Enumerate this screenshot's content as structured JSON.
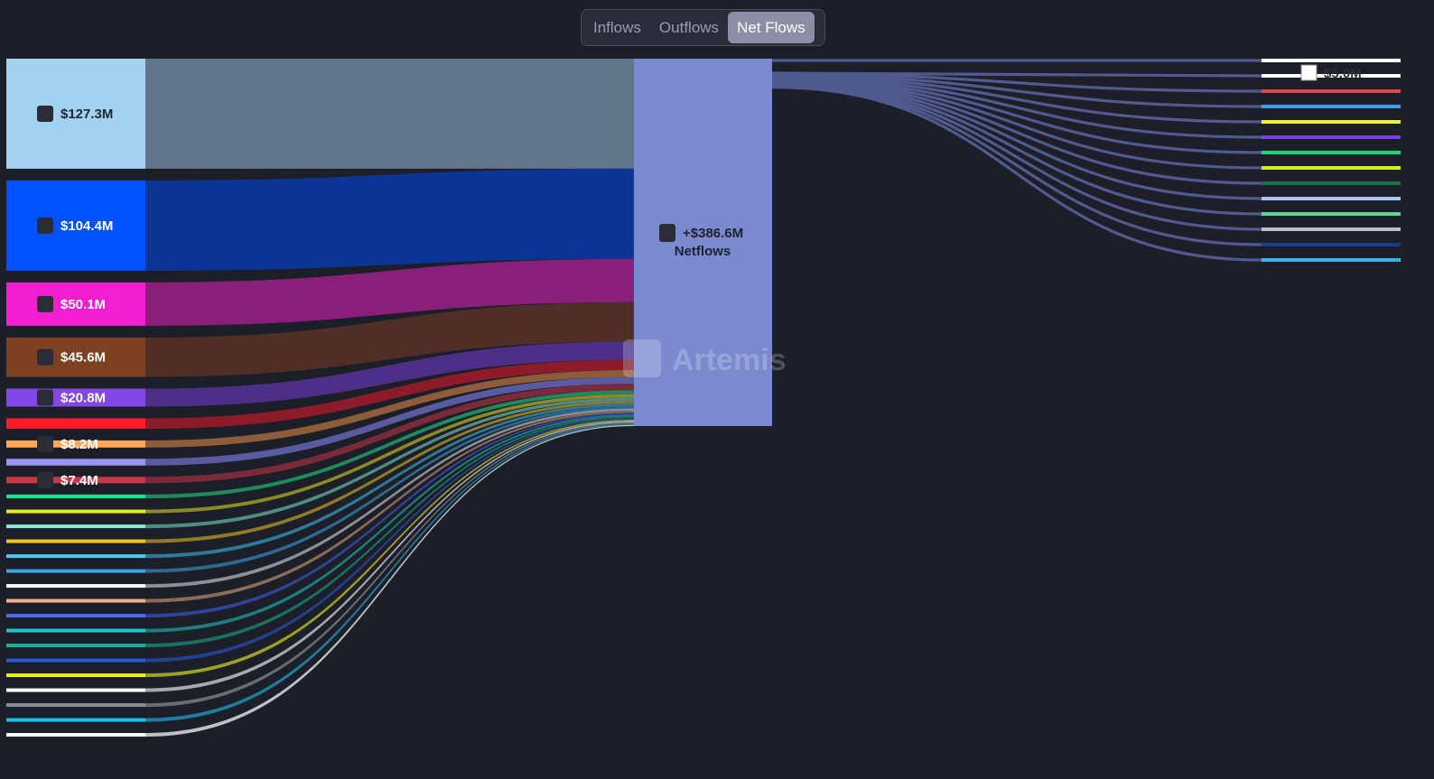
{
  "tabs": {
    "items": [
      {
        "label": "Inflows"
      },
      {
        "label": "Outflows"
      },
      {
        "label": "Net Flows"
      }
    ],
    "active": "Net Flows"
  },
  "watermark": "Artemis",
  "chart_data": {
    "type": "sankey",
    "center": {
      "value_label": "+$386.6M",
      "label": "Netflows",
      "icon": "ethereum-icon",
      "color": "#7b89cf"
    },
    "inflows": [
      {
        "value": 127.3,
        "label": "$127.3M",
        "icon": "arbitrum-icon",
        "node_color": "#a3d2f1",
        "link_color": "#62758b"
      },
      {
        "value": 104.4,
        "label": "$104.4M",
        "icon": "base-icon",
        "node_color": "#0052ff",
        "link_color": "#0c3494"
      },
      {
        "value": 50.1,
        "label": "$50.1M",
        "icon": "blast-icon",
        "node_color": "#f21fd2",
        "link_color": "#8a1f7a"
      },
      {
        "value": 45.6,
        "label": "$45.6M",
        "icon": "tron-icon",
        "node_color": "#7d4122",
        "link_color": "#4e2e26"
      },
      {
        "value": 20.8,
        "label": "$20.8M",
        "icon": "polygon-icon",
        "node_color": "#8247e5",
        "link_color": "#4d2f88"
      },
      {
        "value": 12.0,
        "label": "",
        "node_color": "#ff1a2a",
        "link_color": "#8e1b2a"
      },
      {
        "value": 8.2,
        "label": "$8.2M",
        "icon": "scroll-icon",
        "node_color": "#ffa657",
        "link_color": "#8d5c3a"
      },
      {
        "value": 7.8,
        "label": "",
        "node_color": "#9a94f5",
        "link_color": "#5a5aa0"
      },
      {
        "value": 7.4,
        "label": "$7.4M",
        "icon": "chain-icon",
        "node_color": "#c9384a",
        "link_color": "#7a2a38"
      },
      {
        "value": 4.4,
        "label": "",
        "node_color": "#19e38b",
        "link_color": "#1f8a5e"
      },
      {
        "value": 4.0,
        "label": "",
        "node_color": "#ecec1c",
        "link_color": "#8a8a2a"
      },
      {
        "value": 3.6,
        "label": "",
        "node_color": "#8ae8dd",
        "link_color": "#4f8c88"
      },
      {
        "value": 3.2,
        "label": "",
        "node_color": "#f3c522",
        "link_color": "#8e7a2a"
      },
      {
        "value": 3.0,
        "label": "",
        "node_color": "#4ac8f0",
        "link_color": "#2f7a96"
      },
      {
        "value": 2.8,
        "label": "",
        "node_color": "#3ca5e8",
        "link_color": "#2d6a90"
      },
      {
        "value": 2.6,
        "label": "",
        "node_color": "#ffffff",
        "link_color": "#8d8f98"
      },
      {
        "value": 2.4,
        "label": "",
        "node_color": "#f1ae8a",
        "link_color": "#8a6a5a"
      },
      {
        "value": 2.2,
        "label": "",
        "node_color": "#4a6cf0",
        "link_color": "#2f4496"
      },
      {
        "value": 2.0,
        "label": "",
        "node_color": "#1cc7c7",
        "link_color": "#1e7d7d"
      },
      {
        "value": 1.9,
        "label": "",
        "node_color": "#14b39a",
        "link_color": "#1a7064"
      },
      {
        "value": 1.8,
        "label": "",
        "node_color": "#2a5cd6",
        "link_color": "#244090"
      },
      {
        "value": 1.7,
        "label": "",
        "node_color": "#e7f21c",
        "link_color": "#9aa02a"
      },
      {
        "value": 1.6,
        "label": "",
        "node_color": "#ffffff",
        "link_color": "#a8a8b0"
      },
      {
        "value": 1.5,
        "label": "",
        "node_color": "#8f8f96",
        "link_color": "#6a6c74"
      },
      {
        "value": 1.4,
        "label": "",
        "node_color": "#18c1ef",
        "link_color": "#1f7ea0"
      },
      {
        "value": 1.3,
        "label": "",
        "node_color": "#ffffff",
        "link_color": "#bfc0c8"
      }
    ],
    "outflows": [
      {
        "value": 5.0,
        "label": "",
        "node_color": "#ffffff"
      },
      {
        "value": 5.0,
        "label": "$5.0M",
        "icon": "exchange-icon",
        "node_color": "#ffffff"
      },
      {
        "value": 3.9,
        "label": "",
        "node_color": "#e0444f"
      },
      {
        "value": 3.7,
        "label": "",
        "node_color": "#3c9ee8"
      },
      {
        "value": 3.5,
        "label": "",
        "node_color": "#f2f230"
      },
      {
        "value": 3.3,
        "label": "",
        "node_color": "#7b3fe4"
      },
      {
        "value": 3.1,
        "label": "",
        "node_color": "#16d67a"
      },
      {
        "value": 2.9,
        "label": "",
        "node_color": "#d4f01e"
      },
      {
        "value": 2.7,
        "label": "",
        "node_color": "#12744a"
      },
      {
        "value": 2.5,
        "label": "",
        "node_color": "#a9c4f5"
      },
      {
        "value": 2.3,
        "label": "",
        "node_color": "#5fd49a"
      },
      {
        "value": 2.1,
        "label": "",
        "node_color": "#c0c0c4"
      },
      {
        "value": 1.9,
        "label": "",
        "node_color": "#1c3a8a"
      },
      {
        "value": 1.8,
        "label": "",
        "node_color": "#34b4e8"
      }
    ],
    "outflow_link_color": "#505a8f"
  }
}
